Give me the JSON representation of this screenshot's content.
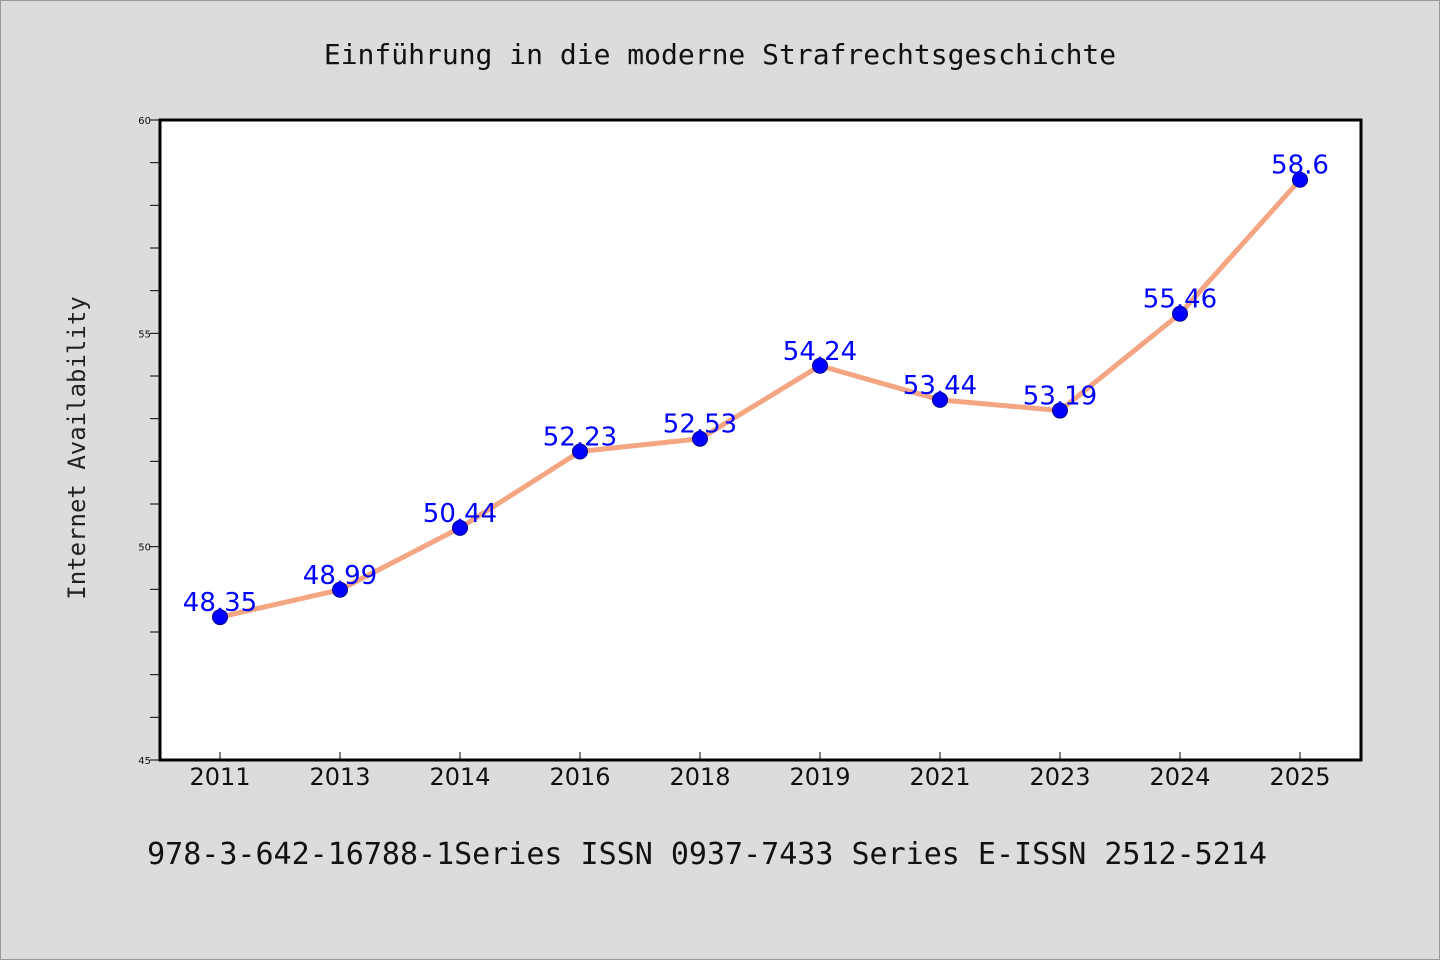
{
  "chart_data": {
    "type": "line",
    "title": "Einführung in die moderne Strafrechtsgeschichte",
    "ylabel": "Internet Availability",
    "xlabel": "",
    "categories": [
      "2011",
      "2013",
      "2014",
      "2016",
      "2018",
      "2019",
      "2021",
      "2023",
      "2024",
      "2025"
    ],
    "values": [
      48.35,
      48.99,
      50.44,
      52.23,
      52.53,
      54.24,
      53.44,
      53.19,
      55.46,
      58.6
    ],
    "value_labels": [
      "48.35",
      "48.99",
      "50.44",
      "52.23",
      "52.53",
      "54.24",
      "53.44",
      "53.19",
      "55.46",
      "58.6"
    ],
    "ylim": [
      45,
      60
    ],
    "yticks": [
      45,
      50,
      55,
      60
    ],
    "grid": false,
    "line_color": "#f4a582",
    "marker_color": "#0000ff",
    "label_color": "#0000ff"
  },
  "footer": "978-3-642-16788-1Series ISSN 0937-7433 Series E-ISSN 2512-5214"
}
